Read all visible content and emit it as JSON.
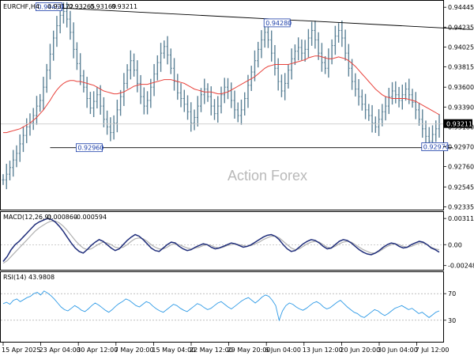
{
  "chart_data": [
    {
      "type": "ohlc",
      "title": "EURCHF,H4",
      "ohlc_readout": [
        "0.93172",
        "0.93265",
        "0.93169",
        "0.93211"
      ],
      "last_price": "0.93211",
      "watermark": "Action Forex",
      "y_ticks": [
        "0.94445",
        "0.94235",
        "0.94025",
        "0.93815",
        "0.93600",
        "0.93390",
        "0.93180",
        "0.92970",
        "0.92760",
        "0.92545",
        "0.92335"
      ],
      "ylim": [
        0.9233,
        0.9448
      ],
      "x_ticks": [
        "15 Apr 2025",
        "23 Apr 04:00",
        "30 Apr 12:00",
        "7 May 20:00",
        "15 May 04:00",
        "22 May 12:00",
        "29 May 20:00",
        "6 Jun 04:00",
        "13 Jun 12:00",
        "20 Jun 20:00",
        "30 Jun 04:00",
        "7 Jul 12:00"
      ],
      "annotations": [
        {
          "text": "0.94450",
          "x": 10,
          "y": 0.9445
        },
        {
          "text": "0.94280",
          "x": 78,
          "y": 0.9428
        },
        {
          "text": "0.92960",
          "x": 22,
          "y": 0.9296
        },
        {
          "text": "0.92970",
          "x": 125,
          "y": 0.9297
        }
      ],
      "trendlines": [
        {
          "from": [
            10,
            0.9445
          ],
          "to": [
            140,
            0.9421
          ]
        },
        {
          "from": [
            14,
            0.9296
          ],
          "to": [
            134,
            0.9296
          ]
        }
      ],
      "moving_average_color": "#e8413a",
      "bar_color": "#5b8196",
      "closes": [
        0.9262,
        0.9268,
        0.9275,
        0.9283,
        0.929,
        0.93,
        0.9309,
        0.9318,
        0.9322,
        0.933,
        0.934,
        0.9346,
        0.936,
        0.9378,
        0.9395,
        0.9412,
        0.9425,
        0.9436,
        0.944,
        0.9432,
        0.9418,
        0.94,
        0.9385,
        0.9372,
        0.936,
        0.9348,
        0.9338,
        0.9345,
        0.9352,
        0.934,
        0.9326,
        0.9318,
        0.9312,
        0.9322,
        0.9336,
        0.935,
        0.9364,
        0.9378,
        0.9388,
        0.9378,
        0.9364,
        0.935,
        0.934,
        0.9346,
        0.936,
        0.9374,
        0.9386,
        0.9396,
        0.9403,
        0.9394,
        0.938,
        0.9366,
        0.9354,
        0.9348,
        0.9342,
        0.9334,
        0.9322,
        0.9328,
        0.934,
        0.9352,
        0.9358,
        0.935,
        0.934,
        0.9332,
        0.934,
        0.9352,
        0.936,
        0.9356,
        0.9346,
        0.9336,
        0.933,
        0.9336,
        0.9348,
        0.9362,
        0.9376,
        0.9388,
        0.94,
        0.941,
        0.9418,
        0.941,
        0.9396,
        0.938,
        0.9366,
        0.9356,
        0.9364,
        0.9378,
        0.939,
        0.9398,
        0.9402,
        0.9396,
        0.94,
        0.9412,
        0.942,
        0.941,
        0.9396,
        0.9386,
        0.938,
        0.939,
        0.9404,
        0.9414,
        0.942,
        0.9412,
        0.9396,
        0.938,
        0.9366,
        0.9358,
        0.935,
        0.9342,
        0.9336,
        0.933,
        0.9322,
        0.9318,
        0.9326,
        0.9334,
        0.934,
        0.935,
        0.9356,
        0.9352,
        0.9346,
        0.9352,
        0.9358,
        0.9352,
        0.9344,
        0.9336,
        0.9326,
        0.9316,
        0.9308,
        0.9303,
        0.931,
        0.9316,
        0.9321
      ],
      "ma": [
        0.9312,
        0.9312,
        0.9313,
        0.9314,
        0.9315,
        0.9316,
        0.9318,
        0.932,
        0.9322,
        0.9325,
        0.9328,
        0.9332,
        0.9336,
        0.9341,
        0.9346,
        0.9352,
        0.9357,
        0.9361,
        0.9364,
        0.9366,
        0.9367,
        0.9367,
        0.9366,
        0.9366,
        0.9365,
        0.9364,
        0.9363,
        0.9362,
        0.936,
        0.9358,
        0.9356,
        0.9355,
        0.9354,
        0.9353,
        0.9353,
        0.9354,
        0.9355,
        0.9357,
        0.9359,
        0.9361,
        0.9362,
        0.9363,
        0.9363,
        0.9363,
        0.9364,
        0.9365,
        0.9366,
        0.9367,
        0.9368,
        0.9368,
        0.9368,
        0.9367,
        0.9366,
        0.9365,
        0.9364,
        0.9362,
        0.936,
        0.9358,
        0.9357,
        0.9356,
        0.9355,
        0.9355,
        0.9355,
        0.9354,
        0.9353,
        0.9353,
        0.9354,
        0.9355,
        0.9357,
        0.9359,
        0.9361,
        0.9363,
        0.9365,
        0.9367,
        0.9369,
        0.9371,
        0.9374,
        0.9377,
        0.938,
        0.9382,
        0.9383,
        0.9384,
        0.9384,
        0.9384,
        0.9384,
        0.9384,
        0.9385,
        0.9386,
        0.9387,
        0.9388,
        0.9389,
        0.9391,
        0.9392,
        0.9393,
        0.9393,
        0.9392,
        0.9391,
        0.939,
        0.939,
        0.9391,
        0.9392,
        0.9391,
        0.939,
        0.9388,
        0.9385,
        0.9382,
        0.9378,
        0.9374,
        0.937,
        0.9366,
        0.9362,
        0.9358,
        0.9355,
        0.9352,
        0.935,
        0.9349,
        0.9348,
        0.9348,
        0.9348,
        0.9348,
        0.9348,
        0.9347,
        0.9346,
        0.9345,
        0.9343,
        0.9341,
        0.9339,
        0.9337,
        0.9335,
        0.9333,
        0.9331
      ]
    },
    {
      "type": "line",
      "title": "MACD(12,26,9)",
      "values_readout": [
        "-0.000860",
        "-0.000594"
      ],
      "y_ticks": [
        "0.00311",
        "0.00",
        "-0.002483"
      ],
      "ylim": [
        -0.0027,
        0.0035
      ],
      "series": [
        {
          "name": "MACD",
          "color": "#1f2d7a",
          "values": [
            -0.002,
            -0.0014,
            -0.0006,
            0.0,
            0.0004,
            0.0009,
            0.0014,
            0.0019,
            0.0024,
            0.0027,
            0.0029,
            0.0031,
            0.003,
            0.0027,
            0.0022,
            0.0016,
            0.0009,
            0.0002,
            -0.0004,
            -0.0008,
            -0.001,
            -0.0006,
            -0.0001,
            0.0003,
            0.0006,
            0.0004,
            0.0,
            -0.0004,
            -0.0007,
            -0.0005,
            0.0,
            0.0005,
            0.0009,
            0.0012,
            0.001,
            0.0006,
            0.0001,
            -0.0004,
            -0.0007,
            -0.0008,
            -0.0004,
            0.0,
            0.0003,
            0.0002,
            -0.0002,
            -0.0005,
            -0.0007,
            -0.0006,
            -0.0003,
            -0.0001,
            0.0001,
            0.0,
            -0.0003,
            -0.0005,
            -0.0004,
            -0.0002,
            0.0,
            0.0002,
            0.0001,
            -0.0001,
            -0.0003,
            -0.0002,
            0.0,
            0.0003,
            0.0006,
            0.0009,
            0.0011,
            0.0012,
            0.001,
            0.0006,
            0.0,
            -0.0005,
            -0.0008,
            -0.0007,
            -0.0003,
            0.0001,
            0.0004,
            0.0006,
            0.0005,
            0.0002,
            -0.0002,
            -0.0005,
            -0.0004,
            0.0,
            0.0004,
            0.0006,
            0.0005,
            0.0002,
            -0.0002,
            -0.0006,
            -0.0009,
            -0.0011,
            -0.0012,
            -0.001,
            -0.0007,
            -0.0003,
            0.0,
            0.0002,
            0.0001,
            -0.0002,
            -0.0004,
            -0.0003,
            0.0,
            0.0002,
            0.0004,
            0.0003,
            0.0,
            -0.0004,
            -0.0006,
            -0.0009
          ]
        },
        {
          "name": "Signal",
          "color": "#b0b0b0",
          "values": [
            -0.0022,
            -0.0019,
            -0.0014,
            -0.0009,
            -0.0004,
            0.0001,
            0.0006,
            0.0011,
            0.0016,
            0.002,
            0.0023,
            0.0026,
            0.0028,
            0.0028,
            0.0026,
            0.0022,
            0.0017,
            0.0011,
            0.0005,
            0.0,
            -0.0004,
            -0.0006,
            -0.0005,
            -0.0002,
            0.0001,
            0.0003,
            0.0002,
            0.0,
            -0.0003,
            -0.0004,
            -0.0003,
            0.0,
            0.0004,
            0.0007,
            0.0008,
            0.0007,
            0.0004,
            0.0,
            -0.0003,
            -0.0005,
            -0.0005,
            -0.0003,
            0.0,
            0.0001,
            0.0,
            -0.0002,
            -0.0004,
            -0.0005,
            -0.0004,
            -0.0003,
            -0.0001,
            0.0,
            -0.0001,
            -0.0003,
            -0.0004,
            -0.0003,
            -0.0001,
            0.0,
            0.0001,
            0.0,
            -0.0001,
            -0.0002,
            -0.0001,
            0.0001,
            0.0003,
            0.0006,
            0.0008,
            0.001,
            0.001,
            0.0008,
            0.0004,
            0.0,
            -0.0004,
            -0.0006,
            -0.0005,
            -0.0002,
            0.0001,
            0.0003,
            0.0004,
            0.0003,
            0.0,
            -0.0003,
            -0.0004,
            -0.0002,
            0.0001,
            0.0003,
            0.0004,
            0.0003,
            0.0,
            -0.0003,
            -0.0006,
            -0.0008,
            -0.001,
            -0.001,
            -0.0008,
            -0.0005,
            -0.0002,
            0.0,
            0.0001,
            0.0,
            -0.0002,
            -0.0003,
            -0.0002,
            0.0,
            0.0002,
            0.0002,
            0.0,
            -0.0003,
            -0.0005,
            -0.0006
          ]
        }
      ]
    },
    {
      "type": "line",
      "title": "RSI(14)",
      "value_readout": "43.9808",
      "y_ticks": [
        "70",
        "30"
      ],
      "ylim": [
        0,
        100
      ],
      "series": [
        {
          "name": "RSI",
          "color": "#2e9ae6",
          "values": [
            55,
            57,
            54,
            60,
            62,
            58,
            61,
            64,
            66,
            70,
            72,
            68,
            74,
            71,
            67,
            62,
            56,
            50,
            46,
            44,
            48,
            52,
            49,
            45,
            43,
            47,
            52,
            56,
            53,
            49,
            45,
            42,
            46,
            51,
            55,
            58,
            62,
            60,
            56,
            52,
            50,
            54,
            58,
            56,
            51,
            47,
            44,
            42,
            46,
            50,
            54,
            52,
            48,
            45,
            43,
            47,
            51,
            55,
            53,
            49,
            46,
            48,
            52,
            56,
            58,
            54,
            50,
            47,
            51,
            55,
            59,
            62,
            64,
            60,
            56,
            60,
            65,
            68,
            66,
            60,
            52,
            30,
            44,
            52,
            56,
            54,
            50,
            47,
            45,
            48,
            52,
            56,
            58,
            55,
            50,
            47,
            49,
            53,
            57,
            60,
            55,
            50,
            46,
            42,
            40,
            36,
            34,
            38,
            42,
            46,
            44,
            40,
            37,
            40,
            44,
            48,
            50,
            52,
            49,
            46,
            48,
            44,
            40,
            42,
            38,
            34,
            38,
            42,
            44
          ]
        }
      ]
    }
  ]
}
